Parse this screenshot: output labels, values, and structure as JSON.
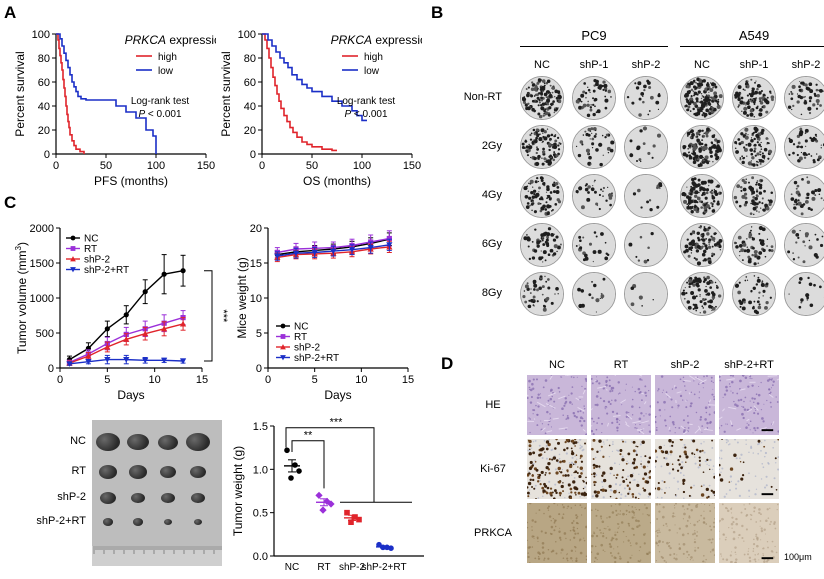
{
  "panels": {
    "a": "A",
    "b": "B",
    "c": "C",
    "d": "D"
  },
  "panel_a": {
    "charts": [
      {
        "type": "line",
        "title": "PRKCA expression",
        "title_gene": "PRKCA",
        "title_rest": " expression",
        "xlabel": "PFS (months)",
        "ylabel": "Percent survival",
        "xlim": [
          0,
          150
        ],
        "ylim": [
          0,
          100
        ],
        "xticks": [
          0,
          50,
          100,
          150
        ],
        "yticks": [
          0,
          20,
          40,
          60,
          80,
          100
        ],
        "xtick_labels": [
          "0",
          "50",
          "100",
          "150"
        ],
        "ytick_labels": [
          "0",
          "20",
          "40",
          "60",
          "80",
          "100"
        ],
        "legend": [
          {
            "name": "high",
            "color": "#e0242b"
          },
          {
            "name": "low",
            "color": "#1b2fc7"
          }
        ],
        "annotation_line1": "Log-rank test",
        "annotation_p": "P",
        "annotation_rest": " < 0.001",
        "series": [
          {
            "name": "high",
            "color": "#e0242b",
            "x": [
              0,
              2,
              3,
              4,
              5,
              6,
              7,
              8,
              9,
              10,
              11,
              12,
              13,
              14,
              16,
              18,
              20,
              24,
              28
            ],
            "y": [
              100,
              95,
              88,
              82,
              76,
              70,
              62,
              55,
              48,
              40,
              33,
              27,
              22,
              16,
              11,
              7,
              4,
              2,
              0
            ]
          },
          {
            "name": "low",
            "color": "#1b2fc7",
            "x": [
              0,
              4,
              6,
              8,
              10,
              12,
              14,
              16,
              18,
              20,
              22,
              25,
              30,
              40,
              50,
              60,
              70,
              80,
              90,
              97,
              100
            ],
            "y": [
              100,
              96,
              90,
              84,
              78,
              72,
              66,
              60,
              56,
              52,
              48,
              46,
              45,
              45,
              45,
              40,
              35,
              30,
              20,
              15,
              0
            ]
          }
        ]
      },
      {
        "type": "line",
        "title": "PRKCA expression",
        "title_gene": "PRKCA",
        "title_rest": " expression",
        "xlabel": "OS (months)",
        "ylabel": "Percent survival",
        "xlim": [
          0,
          150
        ],
        "ylim": [
          0,
          100
        ],
        "xticks": [
          0,
          50,
          100,
          150
        ],
        "yticks": [
          0,
          20,
          40,
          60,
          80,
          100
        ],
        "xtick_labels": [
          "0",
          "50",
          "100",
          "150"
        ],
        "ytick_labels": [
          "0",
          "20",
          "40",
          "60",
          "80",
          "100"
        ],
        "legend": [
          {
            "name": "high",
            "color": "#e0242b"
          },
          {
            "name": "low",
            "color": "#1b2fc7"
          }
        ],
        "annotation_line1": "Log-rank test",
        "annotation_p": "P",
        "annotation_rest": " < 0.001",
        "series": [
          {
            "name": "high",
            "color": "#e0242b",
            "x": [
              0,
              3,
              5,
              7,
              9,
              11,
              13,
              15,
              17,
              19,
              22,
              25,
              28,
              31,
              35,
              40,
              45,
              50,
              60,
              70,
              75
            ],
            "y": [
              100,
              95,
              88,
              80,
              72,
              64,
              57,
              50,
              44,
              38,
              32,
              27,
              22,
              18,
              14,
              10,
              8,
              6,
              4,
              3,
              3
            ]
          },
          {
            "name": "low",
            "color": "#1b2fc7",
            "x": [
              0,
              6,
              10,
              14,
              18,
              22,
              26,
              30,
              35,
              40,
              45,
              50,
              60,
              70,
              80,
              90,
              95,
              100,
              105
            ],
            "y": [
              100,
              95,
              90,
              85,
              80,
              76,
              72,
              66,
              62,
              58,
              55,
              52,
              48,
              44,
              40,
              36,
              32,
              28,
              28
            ]
          }
        ]
      }
    ]
  },
  "panel_b": {
    "groups": [
      {
        "name": "PC9",
        "columns": [
          "NC",
          "shP-1",
          "shP-2"
        ]
      },
      {
        "name": "A549",
        "columns": [
          "NC",
          "shP-1",
          "shP-2"
        ]
      }
    ],
    "rows": [
      "Non-RT",
      "2Gy",
      "4Gy",
      "6Gy",
      "8Gy"
    ],
    "density": [
      [
        [
          0.9,
          0.35,
          0.15
        ],
        [
          0.95,
          0.6,
          0.35
        ]
      ],
      [
        [
          0.7,
          0.25,
          0.1
        ],
        [
          0.85,
          0.55,
          0.3
        ]
      ],
      [
        [
          0.55,
          0.2,
          0.08
        ],
        [
          0.75,
          0.45,
          0.25
        ]
      ],
      [
        [
          0.35,
          0.15,
          0.05
        ],
        [
          0.6,
          0.35,
          0.15
        ]
      ],
      [
        [
          0.3,
          0.1,
          0.04
        ],
        [
          0.55,
          0.3,
          0.1
        ]
      ]
    ]
  },
  "panel_c": {
    "tumor_volume": {
      "type": "line",
      "xlabel": "Days",
      "ylabel": "Tumor volume (mm",
      "ylabel_sup": "3",
      "ylabel_end": ")",
      "xlim": [
        0,
        15
      ],
      "ylim": [
        0,
        2000
      ],
      "xticks": [
        0,
        5,
        10,
        15
      ],
      "yticks": [
        0,
        500,
        1000,
        1500,
        2000
      ],
      "xtick_labels": [
        "0",
        "5",
        "10",
        "15"
      ],
      "ytick_labels": [
        "0",
        "500",
        "1000",
        "1500",
        "2000"
      ],
      "significance": "***",
      "x": [
        1,
        3,
        5,
        7,
        9,
        11,
        13
      ],
      "series": [
        {
          "name": "NC",
          "color": "#000000",
          "marker": "circle",
          "values": [
            120,
            280,
            560,
            760,
            1090,
            1340,
            1390
          ],
          "err": [
            50,
            80,
            110,
            130,
            170,
            280,
            220
          ]
        },
        {
          "name": "RT",
          "color": "#9b30d9",
          "marker": "square",
          "values": [
            80,
            200,
            350,
            480,
            560,
            640,
            720
          ],
          "err": [
            30,
            60,
            90,
            100,
            110,
            120,
            100
          ]
        },
        {
          "name": "shP-2",
          "color": "#e0242b",
          "marker": "triangle",
          "values": [
            70,
            170,
            300,
            410,
            490,
            560,
            630
          ],
          "err": [
            30,
            50,
            70,
            80,
            90,
            100,
            90
          ]
        },
        {
          "name": "shP-2+RT",
          "color": "#1b2fc7",
          "marker": "triangle-down",
          "values": [
            60,
            90,
            120,
            120,
            110,
            110,
            100
          ],
          "err": [
            20,
            30,
            60,
            60,
            40,
            30,
            30
          ]
        }
      ]
    },
    "mice_weight": {
      "type": "line",
      "xlabel": "Days",
      "ylabel": "Mice weight (g)",
      "xlim": [
        0,
        15
      ],
      "ylim": [
        0,
        20
      ],
      "xticks": [
        0,
        5,
        10,
        15
      ],
      "yticks": [
        0,
        5,
        10,
        15,
        20
      ],
      "xtick_labels": [
        "0",
        "5",
        "10",
        "15"
      ],
      "ytick_labels": [
        "0",
        "5",
        "10",
        "15",
        "20"
      ],
      "x": [
        1,
        3,
        5,
        7,
        9,
        11,
        13
      ],
      "series": [
        {
          "name": "NC",
          "color": "#000000",
          "marker": "circle",
          "values": [
            16.2,
            16.6,
            16.8,
            17.0,
            17.3,
            17.8,
            18.4
          ],
          "err": [
            0.6,
            0.7,
            0.7,
            0.7,
            0.8,
            0.8,
            0.9
          ]
        },
        {
          "name": "RT",
          "color": "#9b30d9",
          "marker": "square",
          "values": [
            16.5,
            17.0,
            17.1,
            17.2,
            17.5,
            18.0,
            18.5
          ],
          "err": [
            0.7,
            0.8,
            0.9,
            0.8,
            0.9,
            1.0,
            1.1
          ]
        },
        {
          "name": "shP-2",
          "color": "#e0242b",
          "marker": "triangle",
          "values": [
            15.8,
            16.2,
            16.3,
            16.4,
            16.6,
            17.0,
            17.3
          ],
          "err": [
            0.6,
            0.6,
            0.7,
            0.7,
            0.7,
            0.7,
            0.8
          ]
        },
        {
          "name": "shP-2+RT",
          "color": "#1b2fc7",
          "marker": "triangle-down",
          "values": [
            16.0,
            16.4,
            16.5,
            16.7,
            16.9,
            17.2,
            17.6
          ],
          "err": [
            0.6,
            0.7,
            0.7,
            0.7,
            0.7,
            0.8,
            0.8
          ]
        }
      ]
    },
    "tumor_photo": {
      "rows": [
        "NC",
        "RT",
        "shP-2",
        "shP-2+RT"
      ],
      "tumor_sizes": [
        [
          12,
          11,
          10,
          12
        ],
        [
          9,
          9,
          8,
          8
        ],
        [
          8,
          7,
          7,
          7
        ],
        [
          5,
          5,
          4,
          4
        ]
      ]
    },
    "tumor_weight": {
      "type": "scatter",
      "ylabel": "Tumor weight (g)",
      "categories": [
        "NC",
        "RT",
        "shP-2",
        "shP-2+RT"
      ],
      "ylim": [
        0,
        1.5
      ],
      "yticks": [
        0,
        0.5,
        1.0,
        1.5
      ],
      "ytick_labels": [
        "0.0",
        "0.5",
        "1.0",
        "1.5"
      ],
      "points": [
        {
          "color": "#000000",
          "shape": "circle",
          "values": [
            1.22,
            1.05,
            0.98,
            0.9
          ],
          "mean": 1.04,
          "sem": 0.07
        },
        {
          "color": "#9b30d9",
          "shape": "diamond",
          "values": [
            0.7,
            0.63,
            0.6,
            0.53
          ],
          "mean": 0.62,
          "sem": 0.04
        },
        {
          "color": "#e0242b",
          "shape": "square",
          "values": [
            0.5,
            0.45,
            0.42,
            0.39
          ],
          "mean": 0.44,
          "sem": 0.03
        },
        {
          "color": "#1b2fc7",
          "shape": "circle",
          "values": [
            0.13,
            0.1,
            0.09,
            0.1
          ],
          "mean": 0.105,
          "sem": 0.01
        }
      ],
      "sig_double": "**",
      "sig_triple": "***"
    }
  },
  "panel_d": {
    "columns": [
      "NC",
      "RT",
      "shP-2",
      "shP-2+RT"
    ],
    "rows": [
      "HE",
      "Ki-67",
      "PRKCA"
    ],
    "scale_label": "100μm",
    "ki67_density": [
      0.85,
      0.5,
      0.35,
      0.1
    ],
    "prkca_intensity": [
      0.75,
      0.7,
      0.5,
      0.25
    ]
  }
}
